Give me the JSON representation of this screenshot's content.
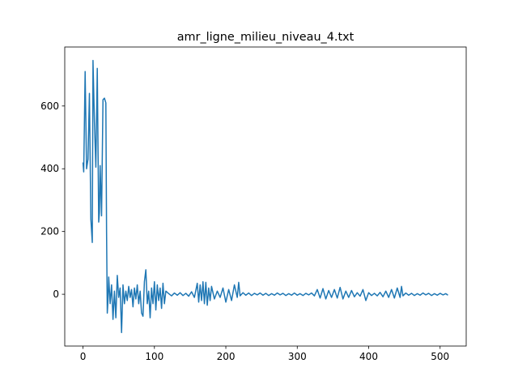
{
  "chart_data": {
    "type": "line",
    "title": "amr_ligne_milieu_niveau_4.txt",
    "xlim": [
      -25.55,
      536.55
    ],
    "ylim": [
      -165,
      788
    ],
    "xticks": [
      0,
      100,
      200,
      300,
      400,
      500
    ],
    "yticks": [
      0,
      200,
      400,
      600
    ],
    "series": [
      {
        "color": "#1f77b4",
        "x": [
          0,
          1,
          3,
          5,
          7,
          9,
          11,
          13,
          14,
          16,
          18,
          20,
          22,
          23,
          24,
          26,
          28,
          30,
          32,
          33,
          34,
          35,
          36,
          38,
          40,
          42,
          44,
          46,
          48,
          50,
          52,
          54,
          56,
          58,
          60,
          62,
          64,
          66,
          68,
          70,
          72,
          74,
          76,
          78,
          80,
          82,
          84,
          86,
          88,
          90,
          92,
          94,
          96,
          98,
          100,
          102,
          104,
          106,
          108,
          110,
          112,
          114,
          116,
          120,
          124,
          128,
          132,
          136,
          140,
          144,
          148,
          152,
          156,
          160,
          162,
          164,
          166,
          168,
          170,
          172,
          174,
          176,
          178,
          180,
          184,
          188,
          192,
          196,
          200,
          204,
          208,
          212,
          216,
          218,
          220,
          224,
          228,
          232,
          236,
          240,
          244,
          248,
          252,
          256,
          260,
          264,
          268,
          272,
          276,
          280,
          284,
          288,
          292,
          296,
          300,
          304,
          308,
          312,
          316,
          320,
          324,
          328,
          332,
          336,
          340,
          344,
          348,
          352,
          356,
          360,
          364,
          368,
          372,
          376,
          380,
          384,
          388,
          392,
          396,
          400,
          404,
          408,
          412,
          416,
          420,
          424,
          428,
          432,
          436,
          440,
          444,
          446,
          448,
          452,
          456,
          460,
          464,
          468,
          472,
          476,
          480,
          484,
          488,
          492,
          496,
          500,
          504,
          508,
          511
        ],
        "values": [
          420,
          390,
          710,
          400,
          430,
          640,
          240,
          165,
          745,
          550,
          405,
          720,
          230,
          260,
          410,
          250,
          620,
          625,
          610,
          200,
          -60,
          -20,
          55,
          -30,
          30,
          -80,
          10,
          -75,
          60,
          -10,
          20,
          -122,
          30,
          -30,
          10,
          -20,
          25,
          -10,
          15,
          -40,
          20,
          -15,
          30,
          -30,
          10,
          -60,
          -70,
          40,
          78,
          -30,
          10,
          -75,
          20,
          -30,
          40,
          -50,
          30,
          -20,
          20,
          -45,
          35,
          -30,
          10,
          2,
          -5,
          4,
          -3,
          5,
          -4,
          3,
          -6,
          8,
          -10,
          35,
          -25,
          30,
          -20,
          40,
          -30,
          38,
          -35,
          20,
          -20,
          25,
          -15,
          10,
          -10,
          20,
          -25,
          15,
          -20,
          30,
          -10,
          38,
          -5,
          5,
          -3,
          4,
          -4,
          3,
          -2,
          4,
          -3,
          3,
          -4,
          2,
          -3,
          4,
          -2,
          3,
          -4,
          2,
          -3,
          4,
          -3,
          2,
          -4,
          3,
          -2,
          4,
          -5,
          15,
          -12,
          18,
          -15,
          12,
          -10,
          15,
          -12,
          22,
          -15,
          10,
          -10,
          12,
          -8,
          5,
          -6,
          15,
          -20,
          5,
          -4,
          3,
          -5,
          6,
          -8,
          10,
          -10,
          15,
          -12,
          20,
          -10,
          25,
          -5,
          4,
          -3,
          3,
          -4,
          2,
          -3,
          4,
          -2,
          3,
          -4,
          2,
          -3,
          3,
          -2,
          2,
          -3
        ]
      }
    ]
  }
}
